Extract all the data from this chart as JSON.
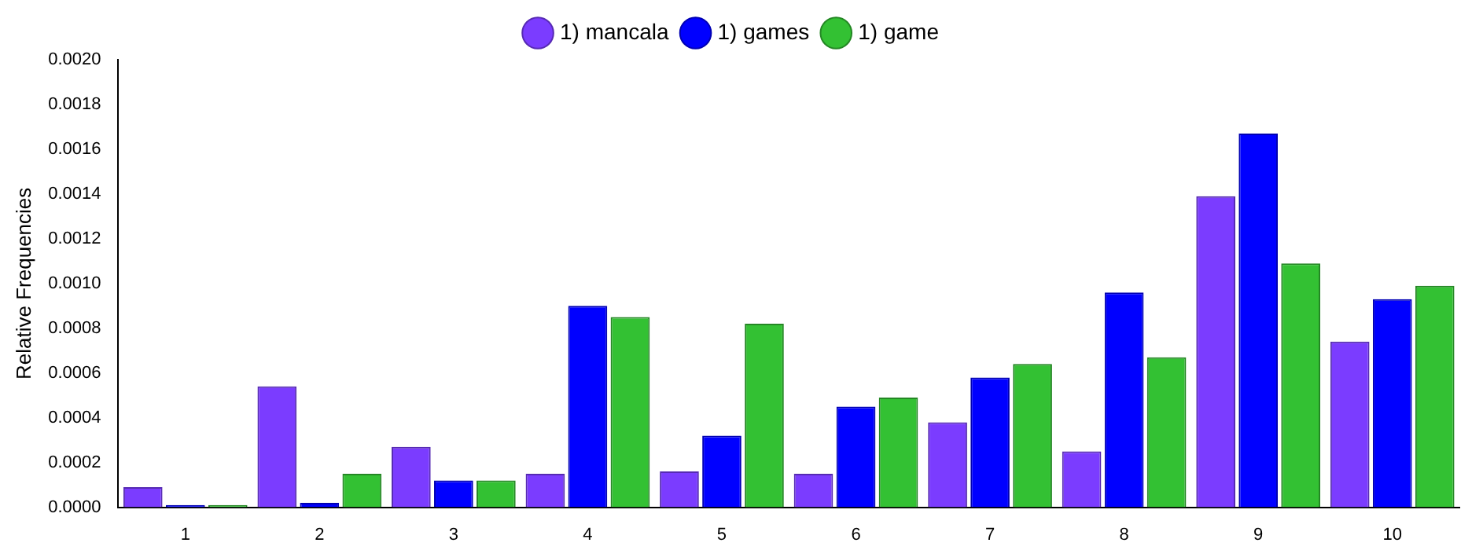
{
  "chart_data": {
    "type": "bar",
    "ylabel": "Relative Frequencies",
    "categories": [
      "1",
      "2",
      "3",
      "4",
      "5",
      "6",
      "7",
      "8",
      "9",
      "10"
    ],
    "series": [
      {
        "name": "1) mancala",
        "color": "#7b3cff",
        "values": [
          9e-05,
          0.00054,
          0.00027,
          0.00015,
          0.00016,
          0.00015,
          0.00038,
          0.00025,
          0.00139,
          0.00074
        ]
      },
      {
        "name": "1) games",
        "color": "#0000ff",
        "values": [
          1e-05,
          2e-05,
          0.00012,
          0.0009,
          0.00032,
          0.00045,
          0.00058,
          0.00096,
          0.00167,
          0.00093
        ]
      },
      {
        "name": "1) game",
        "color": "#33c133",
        "values": [
          1e-05,
          0.00015,
          0.00012,
          0.00085,
          0.00082,
          0.00049,
          0.00064,
          0.00067,
          0.00109,
          0.00099
        ]
      }
    ],
    "ylim": [
      0,
      0.002
    ],
    "yticks": [
      {
        "value": 0,
        "label": "0.0000"
      },
      {
        "value": 0.0002,
        "label": "0.0002"
      },
      {
        "value": 0.0004,
        "label": "0.0004"
      },
      {
        "value": 0.0006,
        "label": "0.0006"
      },
      {
        "value": 0.0008,
        "label": "0.0008"
      },
      {
        "value": 0.001,
        "label": "0.0010"
      },
      {
        "value": 0.0012,
        "label": "0.0012"
      },
      {
        "value": 0.0014,
        "label": "0.0014"
      },
      {
        "value": 0.0016,
        "label": "0.0016"
      },
      {
        "value": 0.0018,
        "label": "0.0018"
      },
      {
        "value": 0.002,
        "label": "0.0020"
      }
    ],
    "grid": false,
    "legend": "top"
  }
}
